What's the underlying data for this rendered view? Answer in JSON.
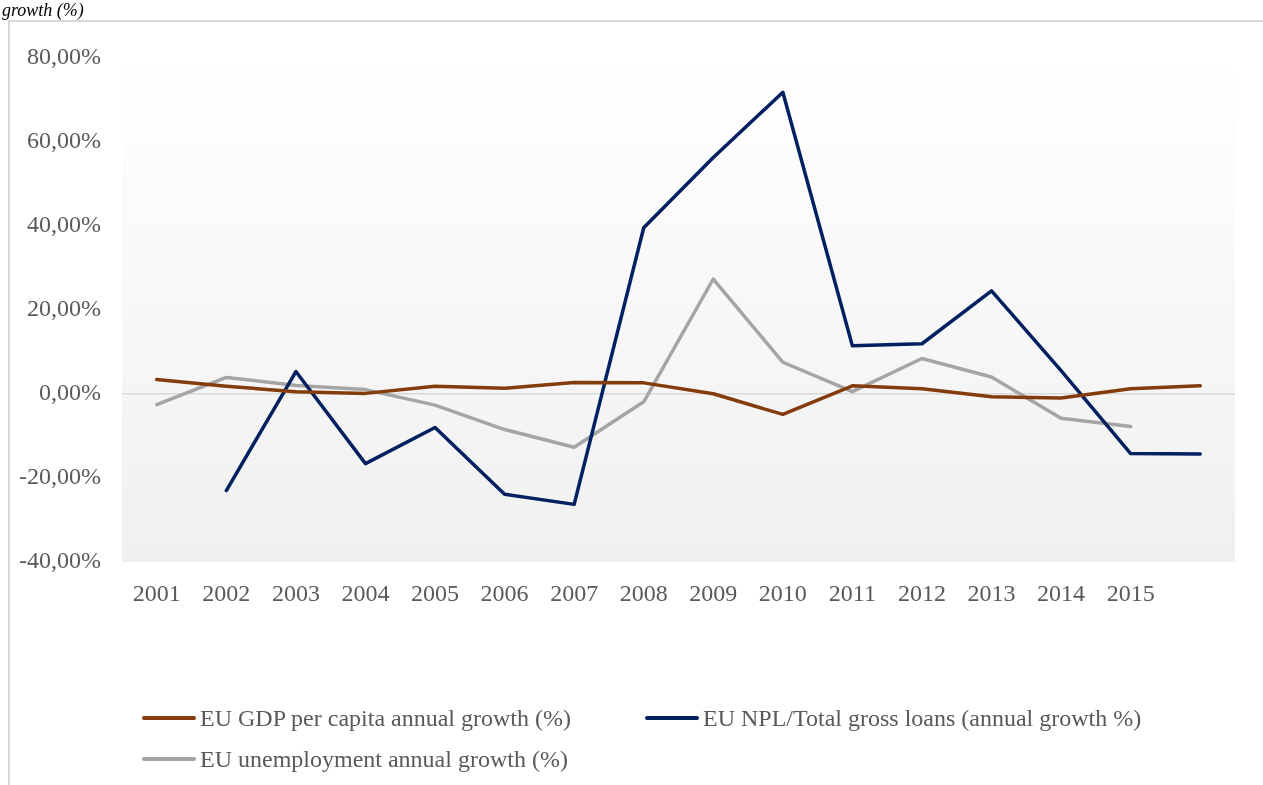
{
  "chart_data": {
    "type": "line",
    "title": "growth (%)",
    "categories": [
      "2001",
      "2002",
      "2003",
      "2004",
      "2005",
      "2006",
      "2007",
      "2008",
      "2009",
      "2010",
      "2011",
      "2012",
      "2013",
      "2014",
      "2015",
      null
    ],
    "series": [
      {
        "name": "EU GDP per capita annual growth (%)",
        "color": "#843c0c",
        "values": [
          3.4,
          1.8,
          0.5,
          0.1,
          1.8,
          1.3,
          2.7,
          2.6,
          0.0,
          -4.9,
          1.9,
          1.2,
          -0.7,
          -1.0,
          1.2,
          1.9
        ]
      },
      {
        "name": "EU NPL/Total gross loans (annual growth %)",
        "color": "#002060",
        "values": [
          null,
          -23.0,
          5.3,
          -16.6,
          -8.0,
          -23.9,
          -26.3,
          39.5,
          56.2,
          71.7,
          11.4,
          11.9,
          24.5,
          5.5,
          -14.2,
          -14.3
        ]
      },
      {
        "name": "EU unemployment annual growth (%)",
        "color": "#a5a5a5",
        "values": [
          -2.6,
          3.9,
          2.0,
          1.0,
          -2.7,
          -8.5,
          -12.7,
          -1.9,
          27.3,
          7.5,
          0.5,
          8.4,
          4.0,
          -5.8,
          -7.8,
          null
        ]
      }
    ],
    "ylim": [
      -40,
      80
    ],
    "yticks": [
      {
        "value": -40,
        "label": "-40,00%"
      },
      {
        "value": -20,
        "label": "-20,00%"
      },
      {
        "value": 0,
        "label": "0,00%"
      },
      {
        "value": 20,
        "label": "20,00%"
      },
      {
        "value": 40,
        "label": "40,00%"
      },
      {
        "value": 60,
        "label": "60,00%"
      },
      {
        "value": 80,
        "label": "80,00%"
      }
    ],
    "ref_lines": [
      {
        "axis": "y",
        "value": 0,
        "color": "#d9d9d9"
      }
    ],
    "legend": "bottom",
    "marker": "none"
  }
}
